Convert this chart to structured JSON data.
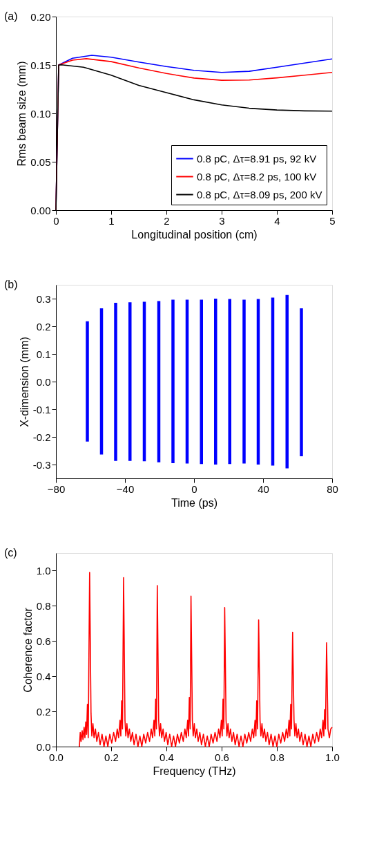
{
  "chart_data": [
    {
      "type": "line",
      "annotations": [
        "(a)"
      ],
      "xlabel": "Longitudinal position (cm)",
      "ylabel": "Rms beam size (mm)",
      "xlim": [
        0,
        5
      ],
      "ylim": [
        0,
        0.2
      ],
      "xticks": [
        0,
        1,
        2,
        3,
        4,
        5
      ],
      "yticks": [
        {
          "value": 0,
          "label": "0.00"
        },
        {
          "value": 0.05,
          "label": "0.05"
        },
        {
          "value": 0.1,
          "label": "0.10"
        },
        {
          "value": 0.15,
          "label": "0.15"
        },
        {
          "value": 0.2,
          "label": "0.20"
        }
      ],
      "grid": false,
      "legend": "bottom right",
      "line_style": "solid",
      "series": [
        {
          "name": "0.8 pC, Δτ=8.91 ps, 92 kV",
          "color": "#0000ff",
          "x": [
            0,
            0.05,
            0.3,
            0.65,
            1,
            1.5,
            2,
            2.5,
            3,
            3.5,
            4,
            4.5,
            5
          ],
          "values": [
            0,
            0.15,
            0.157,
            0.16,
            0.158,
            0.153,
            0.1484,
            0.1445,
            0.1423,
            0.1435,
            0.1477,
            0.152,
            0.1563
          ]
        },
        {
          "name": "0.8 pC, Δτ=8.2 ps, 100 kV",
          "color": "#ff0000",
          "x": [
            0,
            0.05,
            0.3,
            0.55,
            1,
            1.5,
            2,
            2.5,
            3,
            3.5,
            4,
            4.5,
            5
          ],
          "values": [
            0,
            0.15,
            0.155,
            0.1565,
            0.1535,
            0.147,
            0.1412,
            0.1365,
            0.1342,
            0.1345,
            0.1367,
            0.1395,
            0.1423
          ]
        },
        {
          "name": "0.8 pC, Δτ=8.09 ps, 200 kV",
          "color": "#000000",
          "x": [
            0,
            0.05,
            0.1,
            0.5,
            1,
            1.5,
            2,
            2.5,
            3,
            3.5,
            4,
            4.5,
            5
          ],
          "values": [
            0,
            0.15,
            0.1502,
            0.1477,
            0.1395,
            0.129,
            0.1214,
            0.114,
            0.1088,
            0.1053,
            0.1035,
            0.1026,
            0.1023
          ]
        }
      ]
    },
    {
      "type": "line",
      "annotations": [
        "(b)"
      ],
      "xlabel": "Time (ps)",
      "ylabel": "X-dimension (mm)",
      "xlim": [
        -80,
        80
      ],
      "ylim": [
        -0.35,
        0.35
      ],
      "xticks": [
        -80,
        -40,
        0,
        40,
        80
      ],
      "yticks": [
        {
          "value": -0.3,
          "label": "-0.3"
        },
        {
          "value": -0.2,
          "label": "-0.2"
        },
        {
          "value": -0.1,
          "label": "-0.1"
        },
        {
          "value": 0,
          "label": "0.0"
        },
        {
          "value": 0.1,
          "label": "0.1"
        },
        {
          "value": 0.2,
          "label": "0.2"
        },
        {
          "value": 0.3,
          "label": "0.3"
        }
      ],
      "grid": false,
      "line_style": "solid",
      "series": [
        {
          "color": "#0000ff",
          "x": [
            -61.8,
            -61.8
          ],
          "values": [
            -0.217,
            0.218
          ]
        },
        {
          "color": "#0000ff",
          "x": [
            -53.6,
            -53.6
          ],
          "values": [
            -0.264,
            0.265
          ]
        },
        {
          "color": "#0000ff",
          "x": [
            -45.4,
            -45.4
          ],
          "values": [
            -0.287,
            0.285
          ]
        },
        {
          "color": "#0000ff",
          "x": [
            -37.1,
            -37.1
          ],
          "values": [
            -0.287,
            0.287
          ]
        },
        {
          "color": "#0000ff",
          "x": [
            -28.8,
            -28.8
          ],
          "values": [
            -0.288,
            0.289
          ]
        },
        {
          "color": "#0000ff",
          "x": [
            -20.4,
            -20.4
          ],
          "values": [
            -0.292,
            0.291
          ]
        },
        {
          "color": "#0000ff",
          "x": [
            -12.2,
            -12.2
          ],
          "values": [
            -0.295,
            0.296
          ]
        },
        {
          "color": "#0000ff",
          "x": [
            -4.0,
            -4.0
          ],
          "values": [
            -0.296,
            0.296
          ]
        },
        {
          "color": "#0000ff",
          "x": [
            4.3,
            4.3
          ],
          "values": [
            -0.298,
            0.296
          ]
        },
        {
          "color": "#0000ff",
          "x": [
            12.5,
            12.5
          ],
          "values": [
            -0.3,
            0.3
          ]
        },
        {
          "color": "#0000ff",
          "x": [
            20.7,
            20.7
          ],
          "values": [
            -0.298,
            0.299
          ]
        },
        {
          "color": "#0000ff",
          "x": [
            29.0,
            29.0
          ],
          "values": [
            -0.296,
            0.296
          ]
        },
        {
          "color": "#0000ff",
          "x": [
            37.2,
            37.2
          ],
          "values": [
            -0.3,
            0.299
          ]
        },
        {
          "color": "#0000ff",
          "x": [
            45.6,
            45.6
          ],
          "values": [
            -0.304,
            0.304
          ]
        },
        {
          "color": "#0000ff",
          "x": [
            53.9,
            53.9
          ],
          "values": [
            -0.314,
            0.313
          ]
        },
        {
          "color": "#0000ff",
          "x": [
            62.2,
            62.2
          ],
          "values": [
            -0.27,
            0.265
          ]
        }
      ]
    },
    {
      "type": "line",
      "annotations": [
        "(c)"
      ],
      "xlabel": "Frequency (THz)",
      "ylabel": "Coherence factor",
      "xlim": [
        0,
        1
      ],
      "ylim": [
        0,
        1.1
      ],
      "xticks": [
        {
          "value": 0,
          "label": "0.0"
        },
        {
          "value": 0.2,
          "label": "0.2"
        },
        {
          "value": 0.4,
          "label": "0.4"
        },
        {
          "value": 0.6,
          "label": "0.6"
        },
        {
          "value": 0.8,
          "label": "0.8"
        },
        {
          "value": 1,
          "label": "1.0"
        }
      ],
      "yticks": [
        {
          "value": 0,
          "label": "0.0"
        },
        {
          "value": 0.2,
          "label": "0.2"
        },
        {
          "value": 0.4,
          "label": "0.4"
        },
        {
          "value": 0.6,
          "label": "0.6"
        },
        {
          "value": 0.8,
          "label": "0.8"
        },
        {
          "value": 1,
          "label": "1.0"
        }
      ],
      "grid": false,
      "line_style": "solid",
      "series": [
        {
          "color": "#ff0000",
          "x": [
            0.085,
            0.088,
            0.091,
            0.095,
            0.098,
            0.102,
            0.105,
            0.108,
            0.111,
            0.114,
            0.117,
            0.122,
            0.127,
            0.13,
            0.134,
            0.138,
            0.143,
            0.148,
            0.154,
            0.16,
            0.167,
            0.174,
            0.181,
            0.188,
            0.195,
            0.202,
            0.209,
            0.216,
            0.222,
            0.227,
            0.232,
            0.235,
            0.238,
            0.241,
            0.245,
            0.25,
            0.253,
            0.257,
            0.261,
            0.266,
            0.271,
            0.277,
            0.283,
            0.29,
            0.297,
            0.304,
            0.311,
            0.318,
            0.325,
            0.332,
            0.339,
            0.345,
            0.35,
            0.355,
            0.358,
            0.361,
            0.364,
            0.367,
            0.372,
            0.375,
            0.379,
            0.383,
            0.388,
            0.393,
            0.399,
            0.405,
            0.412,
            0.419,
            0.426,
            0.433,
            0.44,
            0.447,
            0.454,
            0.461,
            0.467,
            0.472,
            0.477,
            0.48,
            0.483,
            0.486,
            0.489,
            0.494,
            0.497,
            0.501,
            0.505,
            0.51,
            0.515,
            0.521,
            0.527,
            0.534,
            0.541,
            0.548,
            0.555,
            0.562,
            0.569,
            0.576,
            0.583,
            0.589,
            0.594,
            0.599,
            0.602,
            0.605,
            0.608,
            0.611,
            0.616,
            0.619,
            0.623,
            0.627,
            0.632,
            0.637,
            0.643,
            0.649,
            0.656,
            0.663,
            0.67,
            0.677,
            0.684,
            0.691,
            0.698,
            0.705,
            0.711,
            0.716,
            0.721,
            0.724,
            0.727,
            0.73,
            0.734,
            0.739,
            0.742,
            0.746,
            0.75,
            0.755,
            0.76,
            0.766,
            0.772,
            0.779,
            0.786,
            0.793,
            0.8,
            0.807,
            0.814,
            0.821,
            0.828,
            0.834,
            0.839,
            0.844,
            0.847,
            0.85,
            0.853,
            0.857,
            0.862,
            0.865,
            0.869,
            0.873,
            0.878,
            0.883,
            0.889,
            0.895,
            0.902,
            0.909,
            0.916,
            0.923,
            0.93,
            0.937,
            0.944,
            0.951,
            0.957,
            0.962,
            0.967,
            0.97,
            0.973,
            0.976,
            0.98,
            0.985,
            0.99,
            0.995,
            1.0
          ],
          "values": [
            0.0,
            0.08,
            0.03,
            0.09,
            0.04,
            0.11,
            0.05,
            0.14,
            0.07,
            0.24,
            0.05,
            0.99,
            0.19,
            0.06,
            0.13,
            0.05,
            0.1,
            0.03,
            0.08,
            0.01,
            0.07,
            0.0,
            0.06,
            0.0,
            0.07,
            0.02,
            0.08,
            0.03,
            0.1,
            0.05,
            0.15,
            0.06,
            0.26,
            0.1,
            0.96,
            0.15,
            0.06,
            0.13,
            0.05,
            0.1,
            0.03,
            0.08,
            0.01,
            0.07,
            0.0,
            0.06,
            0.0,
            0.07,
            0.02,
            0.08,
            0.03,
            0.1,
            0.05,
            0.15,
            0.06,
            0.27,
            0.1,
            0.915,
            0.15,
            0.06,
            0.13,
            0.05,
            0.1,
            0.03,
            0.08,
            0.01,
            0.07,
            0.0,
            0.06,
            0.0,
            0.07,
            0.02,
            0.08,
            0.03,
            0.1,
            0.05,
            0.15,
            0.06,
            0.28,
            0.1,
            0.855,
            0.15,
            0.06,
            0.13,
            0.05,
            0.1,
            0.03,
            0.08,
            0.01,
            0.07,
            0.0,
            0.06,
            0.0,
            0.07,
            0.02,
            0.08,
            0.03,
            0.1,
            0.05,
            0.15,
            0.06,
            0.27,
            0.1,
            0.79,
            0.15,
            0.06,
            0.13,
            0.05,
            0.1,
            0.03,
            0.08,
            0.01,
            0.07,
            0.0,
            0.06,
            0.0,
            0.07,
            0.02,
            0.08,
            0.03,
            0.1,
            0.05,
            0.15,
            0.06,
            0.26,
            0.1,
            0.72,
            0.15,
            0.06,
            0.13,
            0.05,
            0.1,
            0.03,
            0.08,
            0.01,
            0.07,
            0.0,
            0.06,
            0.0,
            0.07,
            0.02,
            0.08,
            0.03,
            0.1,
            0.05,
            0.15,
            0.06,
            0.24,
            0.1,
            0.65,
            0.15,
            0.06,
            0.13,
            0.05,
            0.1,
            0.03,
            0.08,
            0.01,
            0.07,
            0.0,
            0.06,
            0.0,
            0.07,
            0.02,
            0.08,
            0.03,
            0.1,
            0.05,
            0.15,
            0.06,
            0.21,
            0.1,
            0.59,
            0.1,
            0.05,
            0.1,
            0.11
          ]
        }
      ]
    }
  ]
}
